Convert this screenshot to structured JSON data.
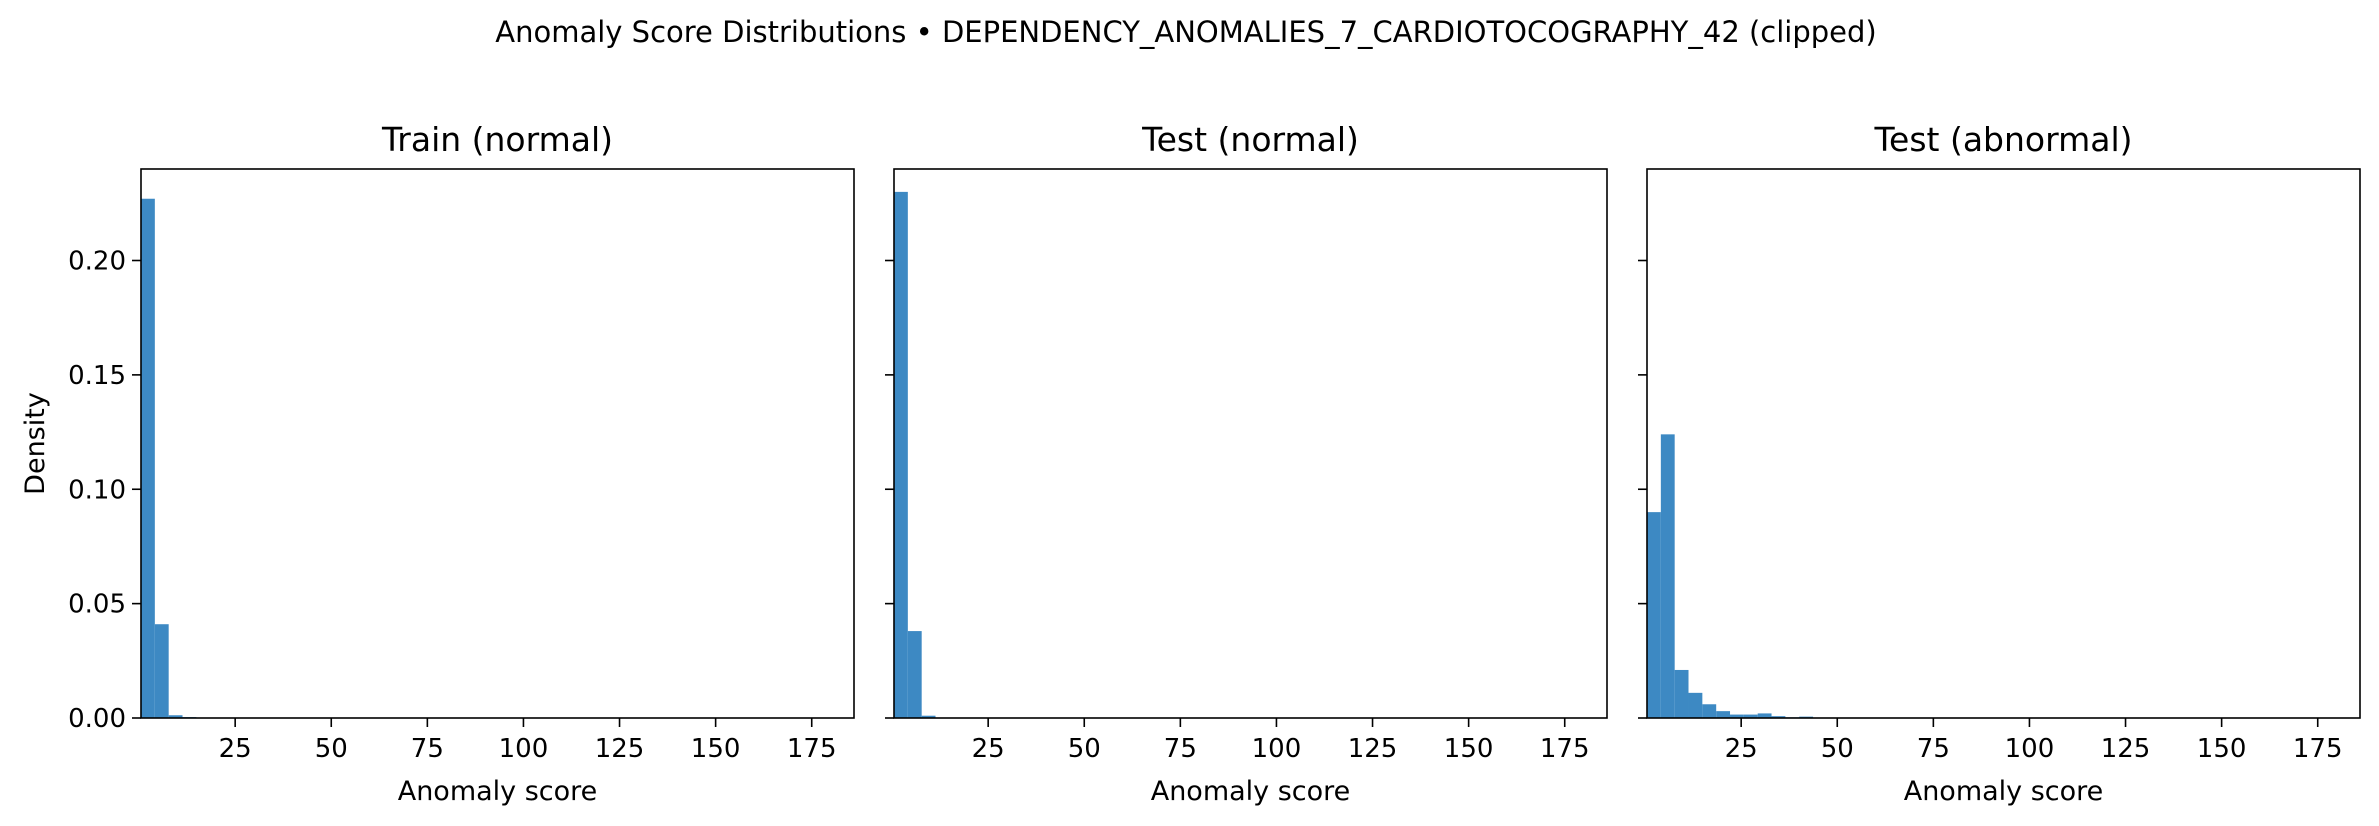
{
  "figure": {
    "title": "Anomaly Score Distributions • DEPENDENCY_ANOMALIES_7_CARDIOTOCOGRAPHY_42 (clipped)"
  },
  "colors": {
    "bar": "#3d89c3",
    "axes": "#000000",
    "background": "#ffffff"
  },
  "chart_data": [
    {
      "type": "bar",
      "title": "Train (normal)",
      "xlabel": "Anomaly score",
      "ylabel": "Density",
      "xlim": [
        0.5,
        186
      ],
      "ylim": [
        0,
        0.24
      ],
      "xticks": [
        25,
        50,
        75,
        100,
        125,
        150,
        175
      ],
      "xtick_labels": [
        "25",
        "50",
        "75",
        "100",
        "125",
        "150",
        "175"
      ],
      "yticks": [
        0,
        0.05,
        0.1,
        0.15,
        0.2
      ],
      "ytick_labels": [
        "0.00",
        "0.05",
        "0.10",
        "0.15",
        "0.20"
      ],
      "grid": false,
      "bin_edges": [
        0.5,
        4.1,
        7.7,
        11.3,
        14.9
      ],
      "values": [
        0.227,
        0.041,
        0.0012,
        0.0004
      ]
    },
    {
      "type": "bar",
      "title": "Test (normal)",
      "xlabel": "Anomaly score",
      "ylabel": "",
      "xlim": [
        0.5,
        186
      ],
      "ylim": [
        0,
        0.24
      ],
      "xticks": [
        25,
        50,
        75,
        100,
        125,
        150,
        175
      ],
      "xtick_labels": [
        "25",
        "50",
        "75",
        "100",
        "125",
        "150",
        "175"
      ],
      "yticks": [
        0,
        0.05,
        0.1,
        0.15,
        0.2
      ],
      "ytick_labels": [],
      "grid": false,
      "bin_edges": [
        0.5,
        4.1,
        7.7,
        11.3
      ],
      "values": [
        0.23,
        0.038,
        0.001
      ]
    },
    {
      "type": "bar",
      "title": "Test (abnormal)",
      "xlabel": "Anomaly score",
      "ylabel": "",
      "xlim": [
        0.5,
        186
      ],
      "ylim": [
        0,
        0.24
      ],
      "xticks": [
        25,
        50,
        75,
        100,
        125,
        150,
        175
      ],
      "xtick_labels": [
        "25",
        "50",
        "75",
        "100",
        "125",
        "150",
        "175"
      ],
      "yticks": [
        0,
        0.05,
        0.1,
        0.15,
        0.2
      ],
      "ytick_labels": [],
      "grid": false,
      "bin_edges": [
        0.5,
        4.1,
        7.7,
        11.3,
        14.9,
        18.5,
        22.1,
        25.7,
        29.3,
        32.9,
        36.5,
        40.1,
        43.7,
        47.3
      ],
      "values": [
        0.09,
        0.124,
        0.021,
        0.011,
        0.006,
        0.003,
        0.0015,
        0.0015,
        0.002,
        0.0008,
        0.0003,
        0.0006,
        0.0002
      ]
    }
  ]
}
